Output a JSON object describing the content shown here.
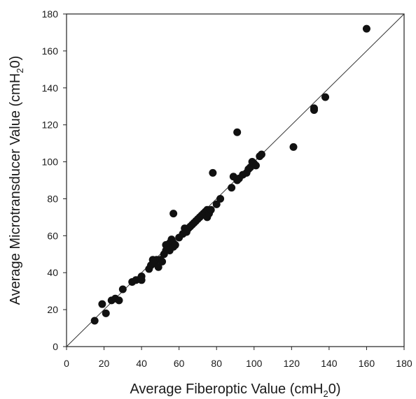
{
  "chart_data": {
    "type": "scatter",
    "title": "",
    "xlabel": "Average Fiberoptic Value (cmH",
    "xlabel_sub": "2",
    "xlabel_end": "0)",
    "ylabel": "Average Microtransducer Value (cmH",
    "ylabel_sub": "2",
    "ylabel_end": "0)",
    "xlim": [
      0,
      180
    ],
    "ylim": [
      0,
      180
    ],
    "xticks": [
      "0",
      "20",
      "40",
      "60",
      "80",
      "100",
      "120",
      "140",
      "160",
      "180"
    ],
    "yticks": [
      "0",
      "20",
      "40",
      "60",
      "80",
      "100",
      "120",
      "140",
      "160",
      "180"
    ],
    "identity_line": true,
    "grid": false,
    "legend": "none",
    "marker_color": "#111111",
    "line_color": "#333333",
    "points": [
      [
        15,
        14
      ],
      [
        19,
        23
      ],
      [
        21,
        18
      ],
      [
        24,
        25
      ],
      [
        26,
        26
      ],
      [
        28,
        25
      ],
      [
        30,
        31
      ],
      [
        35,
        35
      ],
      [
        37,
        36
      ],
      [
        40,
        38
      ],
      [
        40,
        36
      ],
      [
        44,
        42
      ],
      [
        45,
        44
      ],
      [
        46,
        47
      ],
      [
        47,
        45
      ],
      [
        48,
        47
      ],
      [
        49,
        43
      ],
      [
        50,
        47
      ],
      [
        51,
        46
      ],
      [
        52,
        50
      ],
      [
        53,
        52
      ],
      [
        53,
        55
      ],
      [
        54,
        53
      ],
      [
        55,
        52
      ],
      [
        55,
        56
      ],
      [
        56,
        58
      ],
      [
        57,
        56
      ],
      [
        57,
        54
      ],
      [
        58,
        55
      ],
      [
        57,
        72
      ],
      [
        60,
        59
      ],
      [
        62,
        61
      ],
      [
        63,
        64
      ],
      [
        64,
        62
      ],
      [
        65,
        64
      ],
      [
        66,
        65
      ],
      [
        67,
        66
      ],
      [
        68,
        67
      ],
      [
        69,
        68
      ],
      [
        70,
        69
      ],
      [
        71,
        70
      ],
      [
        72,
        71
      ],
      [
        73,
        72
      ],
      [
        74,
        73
      ],
      [
        75,
        74
      ],
      [
        75,
        70
      ],
      [
        76,
        72
      ],
      [
        77,
        74
      ],
      [
        78,
        94
      ],
      [
        80,
        77
      ],
      [
        82,
        80
      ],
      [
        88,
        86
      ],
      [
        89,
        92
      ],
      [
        91,
        90
      ],
      [
        92,
        91
      ],
      [
        91,
        116
      ],
      [
        94,
        93
      ],
      [
        96,
        94
      ],
      [
        97,
        96
      ],
      [
        98,
        97
      ],
      [
        99,
        100
      ],
      [
        100,
        99
      ],
      [
        101,
        98
      ],
      [
        103,
        103
      ],
      [
        104,
        104
      ],
      [
        121,
        108
      ],
      [
        132,
        128
      ],
      [
        132,
        129
      ],
      [
        138,
        135
      ],
      [
        160,
        172
      ]
    ]
  }
}
